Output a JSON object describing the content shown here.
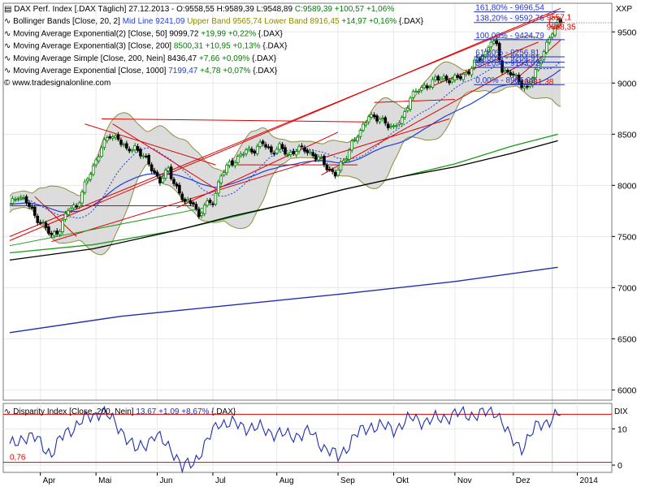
{
  "header": {
    "lines": [
      {
        "id": "price",
        "prefix": "DAX Perf. Index [.DAX  Täglich] 27.12.2013 - ",
        "parts": [
          {
            "t": "O:9558,55 H:9589,39 L:9548,89 ",
            "c": "#000000"
          },
          {
            "t": "C:9589,39 +100,57 +1,06%",
            "c": "#007f00"
          }
        ]
      },
      {
        "id": "bollinger",
        "prefix": "Bollinger Bands [Close, 20, 2] ",
        "parts": [
          {
            "t": "Mid Line 9241,09 ",
            "c": "#1f3fd6"
          },
          {
            "t": "Upper Band 9565,74 Lower Band 8916,45 ",
            "c": "#8c8c00"
          },
          {
            "t": "+14,97 +0,16% ",
            "c": "#007f00"
          },
          {
            "t": "{.DAX}",
            "c": "#000000"
          }
        ]
      },
      {
        "id": "ema2",
        "prefix": "Moving Average Exponential(2) [Close, 50] ",
        "parts": [
          {
            "t": "9099,72 ",
            "c": "#000000"
          },
          {
            "t": "+19,99 +0,22% ",
            "c": "#007f00"
          },
          {
            "t": "{.DAX}",
            "c": "#000000"
          }
        ]
      },
      {
        "id": "ema3",
        "prefix": "Moving Average Exponential(3) [Close, 200] ",
        "parts": [
          {
            "t": "8500,31 +10,95 +0,13% ",
            "c": "#007f00"
          },
          {
            "t": "{.DAX}",
            "c": "#000000"
          }
        ]
      },
      {
        "id": "sma",
        "prefix": "Moving Average Simple [Close, 200, Nein] ",
        "parts": [
          {
            "t": "8436,47 ",
            "c": "#000000"
          },
          {
            "t": "+7,66 +0,09% ",
            "c": "#007f00"
          },
          {
            "t": "{.DAX}",
            "c": "#000000"
          }
        ]
      },
      {
        "id": "ema",
        "prefix": "Moving Average Exponential [Close, 1000] ",
        "parts": [
          {
            "t": "7199,47 ",
            "c": "#1f3fd6"
          },
          {
            "t": "+4,78 +0,07% ",
            "c": "#007f00"
          },
          {
            "t": "{.DAX}",
            "c": "#000000"
          }
        ]
      }
    ],
    "watermark": "www.tradesignalonline.com"
  },
  "colors": {
    "candle_up": "#007f00",
    "candle_down": "#000000",
    "band_fill": "#d6d6d6",
    "band_line": "#8c8c3c",
    "midline": "#1f3fd6",
    "fib": "#2233cc",
    "trend": "#e00000",
    "grid": "#e8e8e8"
  },
  "chart_data": [
    {
      "type": "line",
      "name": "main",
      "y_axis_label": "XXP",
      "ylim": [
        5900,
        9780
      ],
      "y_ticks": [
        6000,
        6500,
        7000,
        7500,
        8000,
        8500,
        9000,
        9500
      ],
      "x_range": [
        0,
        198
      ],
      "x_ticks": [
        {
          "label": "Apr",
          "x": 11
        },
        {
          "label": "Mai",
          "x": 31
        },
        {
          "label": "Jun",
          "x": 53
        },
        {
          "label": "Jul",
          "x": 73
        },
        {
          "label": "Aug",
          "x": 96
        },
        {
          "label": "Sep",
          "x": 118
        },
        {
          "label": "Okt",
          "x": 138
        },
        {
          "label": "Nov",
          "x": 160
        },
        {
          "label": "Dez",
          "x": 181
        },
        {
          "label": "2014",
          "x": 204
        }
      ],
      "close_knots": [
        [
          0,
          7800
        ],
        [
          3,
          7910
        ],
        [
          6,
          7840
        ],
        [
          9,
          7700
        ],
        [
          12,
          7620
        ],
        [
          15,
          7500
        ],
        [
          18,
          7580
        ],
        [
          21,
          7760
        ],
        [
          24,
          7800
        ],
        [
          27,
          8000
        ],
        [
          30,
          8180
        ],
        [
          33,
          8380
        ],
        [
          36,
          8480
        ],
        [
          39,
          8470
        ],
        [
          42,
          8330
        ],
        [
          45,
          8380
        ],
        [
          48,
          8280
        ],
        [
          51,
          8170
        ],
        [
          54,
          8040
        ],
        [
          57,
          8150
        ],
        [
          60,
          7980
        ],
        [
          63,
          7820
        ],
        [
          66,
          7850
        ],
        [
          68,
          7680
        ],
        [
          70,
          7800
        ],
        [
          73,
          7850
        ],
        [
          76,
          8090
        ],
        [
          79,
          8220
        ],
        [
          82,
          8260
        ],
        [
          85,
          8340
        ],
        [
          88,
          8350
        ],
        [
          91,
          8410
        ],
        [
          94,
          8330
        ],
        [
          97,
          8370
        ],
        [
          100,
          8300
        ],
        [
          103,
          8350
        ],
        [
          106,
          8350
        ],
        [
          109,
          8300
        ],
        [
          112,
          8240
        ],
        [
          115,
          8150
        ],
        [
          117,
          8110
        ],
        [
          120,
          8230
        ],
        [
          123,
          8420
        ],
        [
          126,
          8510
        ],
        [
          129,
          8700
        ],
        [
          132,
          8640
        ],
        [
          135,
          8620
        ],
        [
          138,
          8560
        ],
        [
          141,
          8640
        ],
        [
          144,
          8870
        ],
        [
          147,
          8930
        ],
        [
          150,
          8980
        ],
        [
          153,
          9030
        ],
        [
          156,
          9050
        ],
        [
          159,
          9030
        ],
        [
          162,
          9060
        ],
        [
          165,
          9120
        ],
        [
          168,
          9220
        ],
        [
          171,
          9300
        ],
        [
          173,
          9420
        ],
        [
          175,
          9350
        ],
        [
          177,
          9130
        ],
        [
          180,
          9100
        ],
        [
          183,
          9010
        ],
        [
          186,
          8950
        ],
        [
          189,
          9100
        ],
        [
          192,
          9330
        ],
        [
          195,
          9490
        ],
        [
          197,
          9589
        ]
      ],
      "sma200": [
        [
          0,
          7270
        ],
        [
          30,
          7380
        ],
        [
          60,
          7560
        ],
        [
          80,
          7700
        ],
        [
          100,
          7820
        ],
        [
          120,
          7960
        ],
        [
          140,
          8080
        ],
        [
          160,
          8180
        ],
        [
          180,
          8310
        ],
        [
          197,
          8436
        ]
      ],
      "ema200": [
        [
          0,
          7340
        ],
        [
          30,
          7420
        ],
        [
          60,
          7560
        ],
        [
          80,
          7690
        ],
        [
          100,
          7820
        ],
        [
          120,
          7960
        ],
        [
          140,
          8080
        ],
        [
          160,
          8210
        ],
        [
          180,
          8380
        ],
        [
          197,
          8500
        ]
      ],
      "ema1000": [
        [
          0,
          6560
        ],
        [
          40,
          6720
        ],
        [
          80,
          6830
        ],
        [
          120,
          6940
        ],
        [
          160,
          7060
        ],
        [
          197,
          7199
        ]
      ],
      "bollinger": {
        "mid": "Mid Line 9241,09",
        "upper": "Upper Band 9565,74",
        "lower": "Lower Band 8916,45"
      },
      "horizontal_labels": [
        {
          "text": "161,80% - 9696,54",
          "y": 9696,
          "x": 168
        },
        {
          "text": "138,20% - 9592,76",
          "y": 9592,
          "x": 168
        },
        {
          "text": "100,00% - 9424,79",
          "y": 9424,
          "x": 168
        },
        {
          "text": "61,80% - 9256,81",
          "y": 9256,
          "x": 168
        },
        {
          "text": "50,00% - 9204,91",
          "y": 9204,
          "x": 168
        },
        {
          "text": "38,20% - 9153,02",
          "y": 9153,
          "x": 168
        },
        {
          "text": "0,00% - 8985,03",
          "y": 8985,
          "x": 168
        }
      ],
      "price_labels": [
        {
          "text": "9557,1",
          "y": 9640,
          "x": 197
        },
        {
          "text": "9568,35",
          "y": 9545,
          "x": 197
        },
        {
          "text": "9081,38",
          "y": 9010,
          "x": 189
        }
      ]
    },
    {
      "type": "line",
      "name": "Disparity Index",
      "y_axis_label": "DIX",
      "ylim": [
        -2,
        17
      ],
      "y_ticks": [
        0,
        10
      ],
      "level_line": 0.76,
      "level_label": "0,76",
      "knots": [
        [
          0,
          5
        ],
        [
          5,
          8
        ],
        [
          10,
          7
        ],
        [
          15,
          3
        ],
        [
          20,
          9
        ],
        [
          28,
          13
        ],
        [
          33,
          15
        ],
        [
          40,
          10
        ],
        [
          45,
          4
        ],
        [
          52,
          8
        ],
        [
          58,
          5
        ],
        [
          62,
          -1
        ],
        [
          66,
          1
        ],
        [
          70,
          5
        ],
        [
          75,
          12
        ],
        [
          82,
          11
        ],
        [
          90,
          10
        ],
        [
          100,
          8
        ],
        [
          108,
          9
        ],
        [
          113,
          5
        ],
        [
          118,
          2
        ],
        [
          124,
          8
        ],
        [
          130,
          11
        ],
        [
          138,
          10
        ],
        [
          145,
          13
        ],
        [
          150,
          12
        ],
        [
          160,
          14
        ],
        [
          170,
          14
        ],
        [
          175,
          15
        ],
        [
          180,
          7
        ],
        [
          184,
          5
        ],
        [
          190,
          11
        ],
        [
          197,
          13.67
        ]
      ]
    }
  ]
}
